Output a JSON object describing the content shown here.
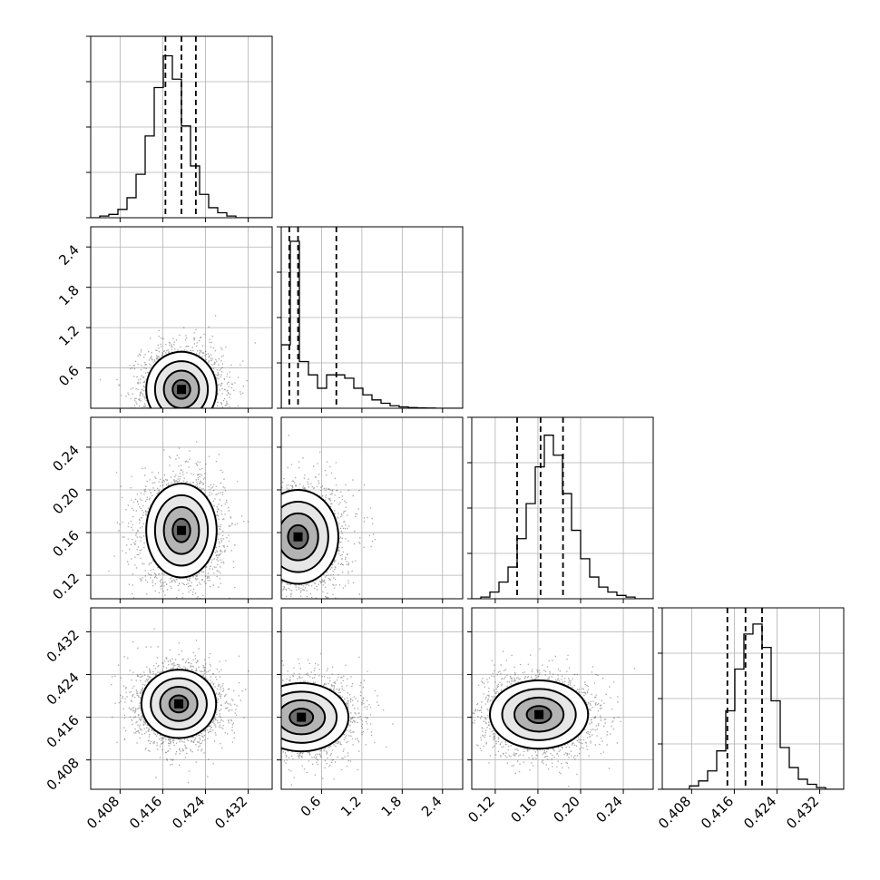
{
  "chart_data": {
    "type": "corner",
    "grid": true,
    "parameters": [
      {
        "range": [
          0.4025,
          0.4365
        ],
        "ticks": [
          0.408,
          0.416,
          0.424,
          0.432
        ],
        "tick_labels": [
          "0.408",
          "0.416",
          "0.424",
          "0.432"
        ],
        "mean": 0.4195,
        "std": 0.0031,
        "quantiles": [
          0.4165,
          0.4195,
          0.4222
        ],
        "histogram": [
          0.0,
          0.01,
          0.02,
          0.05,
          0.12,
          0.26,
          0.49,
          0.78,
          0.97,
          0.83,
          0.55,
          0.31,
          0.14,
          0.06,
          0.03,
          0.01,
          0.0,
          0.0,
          0.0,
          0.0
        ]
      },
      {
        "range": [
          0.0,
          2.7
        ],
        "ticks": [
          0.6,
          1.2,
          1.8,
          2.4
        ],
        "tick_labels": [
          "0.6",
          "1.2",
          "1.8",
          "2.4"
        ],
        "quantiles": [
          0.12,
          0.25,
          0.82
        ],
        "histogram": [
          0.38,
          1.0,
          0.28,
          0.2,
          0.12,
          0.2,
          0.2,
          0.18,
          0.12,
          0.08,
          0.05,
          0.03,
          0.015,
          0.008,
          0.004,
          0.002,
          0.001,
          0.0,
          0.0,
          0.0
        ]
      },
      {
        "range": [
          0.098,
          0.268
        ],
        "ticks": [
          0.12,
          0.16,
          0.2,
          0.24
        ],
        "tick_labels": [
          "0.12",
          "0.16",
          "0.20",
          "0.24"
        ],
        "mean": 0.162,
        "std": 0.021,
        "quantiles": [
          0.1405,
          0.1625,
          0.1835
        ],
        "histogram": [
          0.0,
          0.01,
          0.04,
          0.1,
          0.19,
          0.36,
          0.57,
          0.79,
          0.98,
          0.86,
          0.63,
          0.41,
          0.24,
          0.13,
          0.07,
          0.04,
          0.02,
          0.01,
          0.0,
          0.0
        ]
      },
      {
        "range": [
          0.4025,
          0.4365
        ],
        "ticks": [
          0.408,
          0.416,
          0.424,
          0.432
        ],
        "tick_labels": [
          "0.408",
          "0.416",
          "0.424",
          "0.432"
        ],
        "mean": 0.418,
        "std": 0.0033,
        "quantiles": [
          0.4147,
          0.4181,
          0.4212
        ],
        "histogram": [
          0.0,
          0.0,
          0.0,
          0.02,
          0.05,
          0.11,
          0.23,
          0.47,
          0.72,
          0.93,
          0.99,
          0.85,
          0.53,
          0.25,
          0.13,
          0.06,
          0.03,
          0.01,
          0.0,
          0.0
        ]
      }
    ],
    "pairs": [
      {
        "row": 1,
        "col": 0,
        "cx": 0.4195,
        "cy": 0.28,
        "sx": 0.0033,
        "sy": 0.28
      },
      {
        "row": 2,
        "col": 0,
        "cx": 0.4195,
        "cy": 0.162,
        "sx": 0.0033,
        "sy": 0.022
      },
      {
        "row": 2,
        "col": 1,
        "cx": 0.25,
        "cy": 0.156,
        "sx": 0.3,
        "sy": 0.022
      },
      {
        "row": 3,
        "col": 0,
        "cx": 0.419,
        "cy": 0.4185,
        "sx": 0.0035,
        "sy": 0.0032
      },
      {
        "row": 3,
        "col": 1,
        "cx": 0.3,
        "cy": 0.416,
        "sx": 0.35,
        "sy": 0.0032
      },
      {
        "row": 3,
        "col": 2,
        "cx": 0.161,
        "cy": 0.4165,
        "sx": 0.023,
        "sy": 0.0032
      }
    ]
  }
}
